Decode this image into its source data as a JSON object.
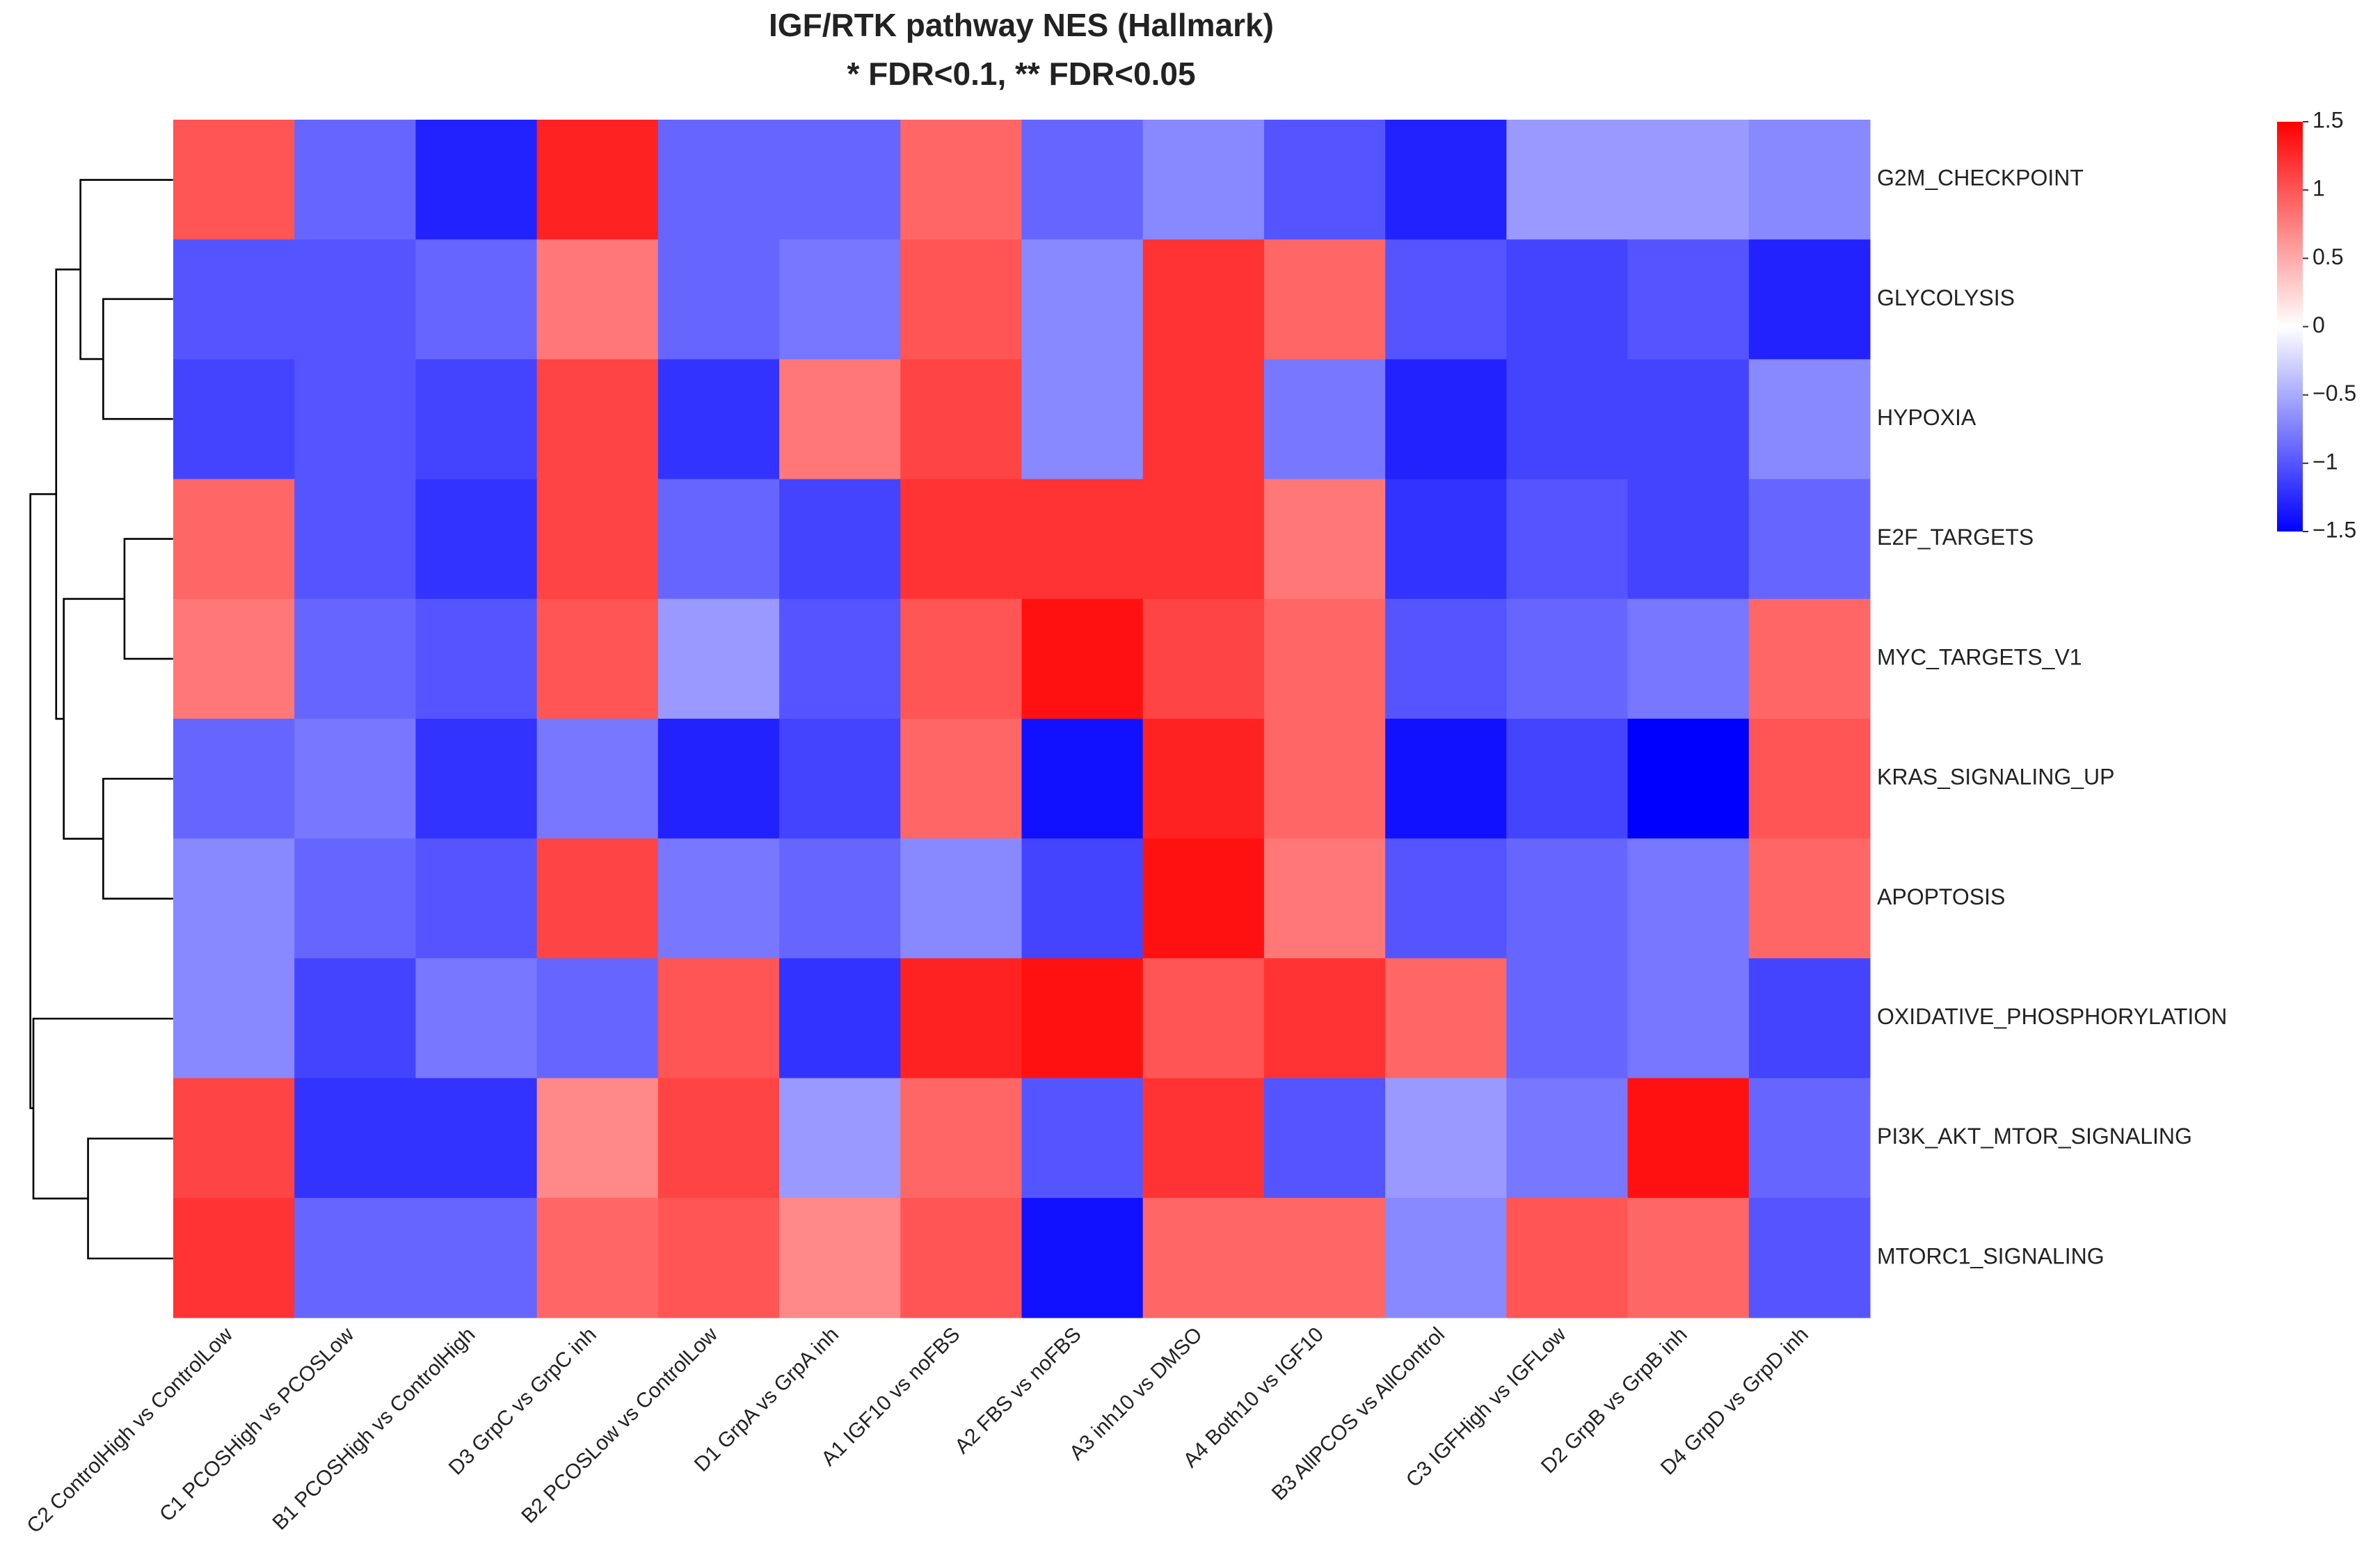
{
  "chart_data": {
    "type": "heatmap",
    "title": "IGF/RTK pathway NES (Hallmark)",
    "subtitle": "* FDR<0.1, ** FDR<0.05",
    "rows": [
      "G2M_CHECKPOINT",
      "GLYCOLYSIS",
      "HYPOXIA",
      "E2F_TARGETS",
      "MYC_TARGETS_V1",
      "KRAS_SIGNALING_UP",
      "APOPTOSIS",
      "OXIDATIVE_PHOSPHORYLATION",
      "PI3K_AKT_MTOR_SIGNALING",
      "MTORC1_SIGNALING"
    ],
    "columns": [
      "C2 ControlHigh vs ControlLow",
      "C1 PCOSHigh vs PCOSLow",
      "B1 PCOSHigh vs ControlHigh",
      "D3 GrpC vs GrpC inh",
      "B2 PCOSLow vs ControlLow",
      "D1 GrpA vs GrpA inh",
      "A1 IGF10 vs noFBS",
      "A2 FBS vs noFBS",
      "A3 inh10 vs DMSO",
      "A4 Both10 vs IGF10",
      "B3 AllPCOS vs AllControl",
      "C3 IGFHigh vs IGFLow",
      "D2 GrpB vs GrpB inh",
      "D4 GrpD vs GrpD inh"
    ],
    "values": [
      [
        1.0,
        -0.9,
        -1.3,
        1.3,
        -0.9,
        -0.9,
        0.9,
        -0.9,
        -0.7,
        -1.0,
        -1.3,
        -0.6,
        -0.6,
        -0.7
      ],
      [
        -1.0,
        -1.0,
        -0.9,
        0.8,
        -0.9,
        -0.8,
        1.0,
        -0.7,
        1.2,
        0.9,
        -1.0,
        -1.1,
        -1.0,
        -1.3
      ],
      [
        -1.1,
        -1.0,
        -1.1,
        1.1,
        -1.2,
        0.8,
        1.1,
        -0.7,
        1.2,
        -0.8,
        -1.3,
        -1.1,
        -1.1,
        -0.7
      ],
      [
        0.9,
        -1.0,
        -1.2,
        1.1,
        -0.9,
        -1.1,
        1.2,
        1.2,
        1.2,
        0.8,
        -1.2,
        -1.0,
        -1.1,
        -0.9
      ],
      [
        0.8,
        -0.9,
        -1.0,
        1.0,
        -0.6,
        -1.0,
        1.0,
        1.4,
        1.1,
        0.9,
        -1.0,
        -0.9,
        -0.8,
        0.9
      ],
      [
        -0.9,
        -0.8,
        -1.2,
        -0.8,
        -1.3,
        -1.1,
        0.9,
        -1.4,
        1.3,
        0.9,
        -1.4,
        -1.1,
        -1.5,
        1.0
      ],
      [
        -0.7,
        -0.9,
        -1.0,
        1.1,
        -0.8,
        -0.9,
        -0.7,
        -1.1,
        1.4,
        0.8,
        -1.0,
        -0.9,
        -0.8,
        0.9
      ],
      [
        -0.7,
        -1.1,
        -0.8,
        -0.9,
        1.0,
        -1.2,
        1.3,
        1.4,
        1.0,
        1.2,
        0.9,
        -0.9,
        -0.8,
        -1.1
      ],
      [
        1.1,
        -1.2,
        -1.2,
        0.7,
        1.1,
        -0.6,
        0.9,
        -1.0,
        1.2,
        -1.0,
        -0.6,
        -0.8,
        1.4,
        -0.9
      ],
      [
        1.2,
        -0.9,
        -0.9,
        0.9,
        1.0,
        0.7,
        1.0,
        -1.4,
        0.9,
        0.9,
        -0.7,
        1.0,
        0.9,
        -1.0
      ]
    ],
    "zlim": [
      -1.5,
      1.5
    ],
    "zticks": [
      1.5,
      1,
      0.5,
      0,
      {
        "value": -0.5,
        "label": "−0.5"
      },
      {
        "value": -1,
        "label": "−1"
      },
      {
        "value": -1.5,
        "label": "−1.5"
      }
    ],
    "colors": {
      "low": "#0000ff",
      "mid": "#ffffff",
      "high": "#ff0000"
    }
  }
}
